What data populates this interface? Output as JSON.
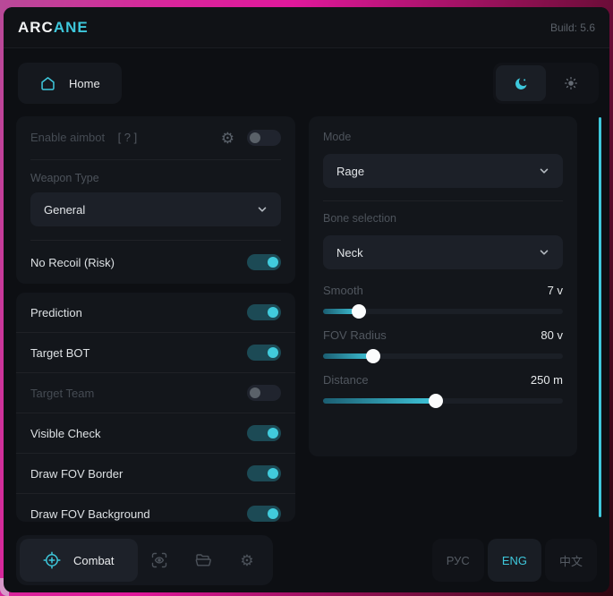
{
  "header": {
    "logo_primary": "ARC",
    "logo_accent": "ANE",
    "build_label": "Build: 5.6"
  },
  "nav": {
    "home_label": "Home"
  },
  "aimbot_card": {
    "enable_label": "Enable aimbot",
    "enable_hint": "[ ? ]",
    "enable_on": false,
    "weapon_type_label": "Weapon Type",
    "weapon_type_value": "General",
    "no_recoil_label": "No Recoil (Risk)",
    "no_recoil_on": true
  },
  "left_toggles": {
    "items": [
      {
        "label": "Prediction",
        "on": true
      },
      {
        "label": "Target BOT",
        "on": true
      },
      {
        "label": "Target Team",
        "on": false
      },
      {
        "label": "Visible Check",
        "on": true
      },
      {
        "label": "Draw FOV Border",
        "on": true
      },
      {
        "label": "Draw FOV Background",
        "on": true
      }
    ]
  },
  "aim_settings": {
    "mode_label": "Mode",
    "mode_value": "Rage",
    "bone_label": "Bone selection",
    "bone_value": "Neck",
    "sliders": [
      {
        "label": "Smooth",
        "value": "7 v",
        "percent": 15
      },
      {
        "label": "FOV Radius",
        "value": "80 v",
        "percent": 21
      },
      {
        "label": "Distance",
        "value": "250 m",
        "percent": 47
      }
    ]
  },
  "footer": {
    "combat_label": "Combat",
    "languages": [
      {
        "label": "РУС",
        "active": false
      },
      {
        "label": "ENG",
        "active": true
      },
      {
        "label": "中文",
        "active": false
      }
    ]
  },
  "colors": {
    "accent": "#3ec8dc"
  }
}
